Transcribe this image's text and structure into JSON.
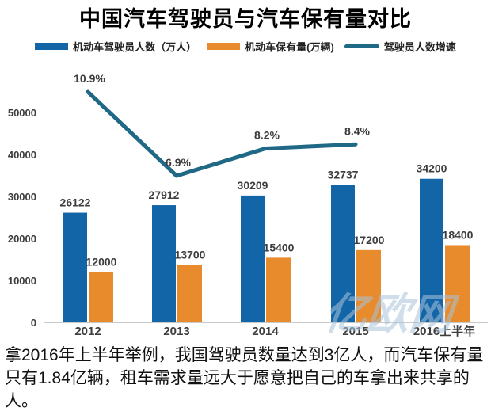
{
  "title": "中国汽车驾驶员与汽车保有量对比",
  "colors": {
    "driver_bar": "#1266a8",
    "vehicle_bar": "#e78b2d",
    "growth_line": "#1f6886",
    "axis_text": "#3d3d3d",
    "baseline": "#c9c9c9",
    "watermark": "#a9c4da"
  },
  "legend": [
    {
      "label": "机动车驾驶员人数（万人）",
      "type": "rect",
      "color": "#1266a8"
    },
    {
      "label": "机动车保有量(万辆)",
      "type": "rect",
      "color": "#e78b2d"
    },
    {
      "label": "驾驶员人数增速",
      "type": "line",
      "color": "#1f6886"
    }
  ],
  "chart_data": {
    "type": "bar",
    "subtype": "grouped bars with secondary-axis line",
    "categories": [
      "2012",
      "2013",
      "2014",
      "2015",
      "2016上半年"
    ],
    "series": [
      {
        "name": "机动车驾驶员人数（万人）",
        "type": "bar",
        "color": "#1266a8",
        "values": [
          26122,
          27912,
          30209,
          32737,
          34200
        ]
      },
      {
        "name": "机动车保有量(万辆)",
        "type": "bar",
        "color": "#e78b2d",
        "values": [
          12000,
          13700,
          15400,
          17200,
          18400
        ]
      },
      {
        "name": "驾驶员人数增速",
        "type": "line",
        "color": "#1f6886",
        "unit": "%",
        "values": [
          10.9,
          6.9,
          8.2,
          8.4,
          null
        ]
      }
    ],
    "y_ticks": [
      0,
      10000,
      20000,
      30000,
      40000,
      50000
    ],
    "ylim": [
      0,
      60000
    ],
    "grid": false,
    "legend_position": "top",
    "data_labels": true
  },
  "watermark": {
    "text": "亿欧网"
  },
  "caption": {
    "text": "拿2016年上半年举例，我国驾驶员数量达到3亿人，而汽车保有量只有1.84亿辆，租车需求量远大于愿意把自己的车拿出来共享的人。"
  }
}
